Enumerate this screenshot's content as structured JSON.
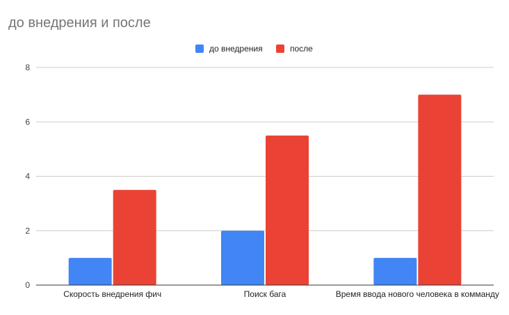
{
  "chart_data": {
    "type": "bar",
    "title": "до внедрения и после",
    "categories": [
      "Скорость внедрения фич",
      "Поиск бага",
      "Время ввода нового человека в комманду"
    ],
    "series": [
      {
        "name": "до внедрения",
        "values": [
          1,
          2,
          1
        ],
        "color": "#4285f4"
      },
      {
        "name": "после",
        "values": [
          3.5,
          5.5,
          7
        ],
        "color": "#ea4335"
      }
    ],
    "y_ticks": [
      0,
      2,
      4,
      6,
      8
    ],
    "ylim": [
      0,
      8
    ],
    "grid": true,
    "legend_position": "top-center"
  }
}
